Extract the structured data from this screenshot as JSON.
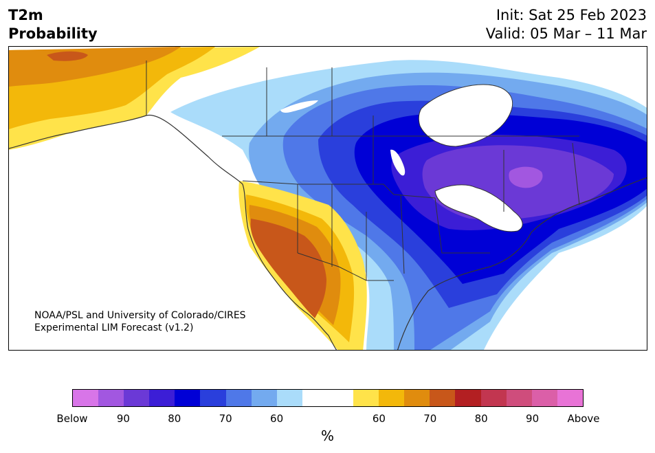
{
  "header": {
    "title_line1": "T2m",
    "title_line2": "Probability",
    "init": "Init: Sat 25 Feb 2023",
    "valid": "Valid: 05 Mar – 11 Mar"
  },
  "credit": {
    "line1": "NOAA/PSL and University of Colorado/CIRES",
    "line2": "Experimental LIM Forecast (v1.2)"
  },
  "colorbar": {
    "colors": [
      "#d875e8",
      "#a257e0",
      "#6b39d6",
      "#3c1ed6",
      "#0000d6",
      "#2a3fdc",
      "#4f78e8",
      "#73aaef",
      "#aadcfa",
      "#ffffff",
      "#ffffff",
      "#ffe34a",
      "#f3b80a",
      "#e08c0e",
      "#c8571a",
      "#b31f22",
      "#c23650",
      "#cf4d7c",
      "#db5fa8",
      "#e873d6"
    ],
    "labels": [
      "Below",
      "90",
      "80",
      "70",
      "60",
      "60",
      "70",
      "80",
      "90",
      "Above"
    ],
    "unit": "%"
  },
  "map": {
    "colors": {
      "water_frozen": "#ffffff",
      "lake": "#ffffff",
      "border": "#333333"
    }
  }
}
